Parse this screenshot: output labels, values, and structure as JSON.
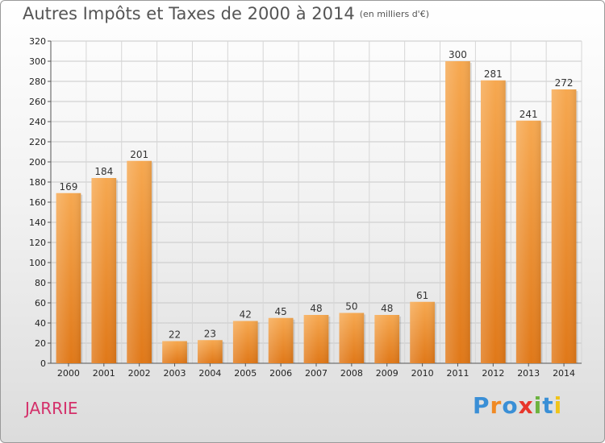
{
  "chart_data": {
    "type": "bar",
    "title": "Autres Impôts et Taxes de 2000 à 2014",
    "subtitle": "(en milliers d'€)",
    "categories": [
      "2000",
      "2001",
      "2002",
      "2003",
      "2004",
      "2005",
      "2006",
      "2007",
      "2008",
      "2009",
      "2010",
      "2011",
      "2012",
      "2013",
      "2014"
    ],
    "values": [
      169,
      184,
      201,
      22,
      23,
      42,
      45,
      48,
      50,
      48,
      61,
      300,
      281,
      241,
      272
    ],
    "ylim": [
      0,
      320
    ],
    "yticks": [
      0,
      20,
      40,
      60,
      80,
      100,
      120,
      140,
      160,
      180,
      200,
      220,
      240,
      260,
      280,
      300,
      320
    ],
    "grid": true,
    "bar_color": "#f0902f",
    "xlabel": "",
    "ylabel": ""
  },
  "place_name": "JARRIE",
  "logo": {
    "text": "Proxiti",
    "letters": [
      {
        "ch": "P",
        "color": "#3a8fd6"
      },
      {
        "ch": "r",
        "color": "#f08a24"
      },
      {
        "ch": "o",
        "color": "#3a8fd6"
      },
      {
        "ch": "x",
        "color": "#e8362b"
      },
      {
        "ch": "i",
        "color": "#6cb33f"
      },
      {
        "ch": "t",
        "color": "#3a8fd6"
      },
      {
        "ch": "i",
        "color": "#f0c419"
      }
    ]
  }
}
